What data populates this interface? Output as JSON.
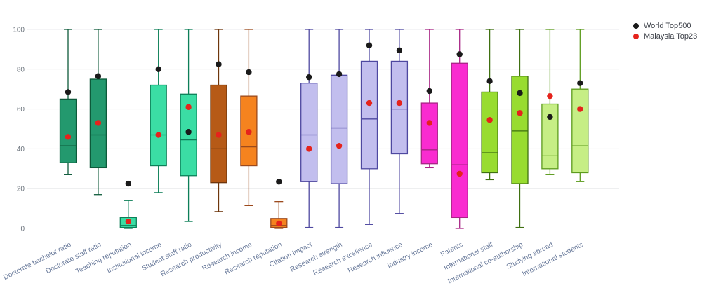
{
  "chart_data": {
    "type": "box",
    "title": "",
    "xlabel": "",
    "ylabel": "",
    "ylim": [
      0,
      100
    ],
    "yticks": [
      0,
      20,
      40,
      60,
      80,
      100
    ],
    "grid": true,
    "legend": {
      "position": "top-right",
      "items": [
        {
          "label": "World Top500",
          "color": "#1a1a1a"
        },
        {
          "label": "Malaysia Top23",
          "color": "#e5231c"
        }
      ]
    },
    "categories": [
      "Doctorate bachelor ratio",
      "Doctorate staff ratio",
      "Teaching reputation",
      "Institutional income",
      "Student staff ratio",
      "Research productivity",
      "Research income",
      "Research reputation",
      "Citation Impact",
      "Research strength",
      "Research excellence",
      "Research influence",
      "Industry income",
      "Patents",
      "International staff",
      "International co-authorship",
      "Studying abroad",
      "International students"
    ],
    "boxes": [
      {
        "label": "Doctorate bachelor ratio",
        "low": 27,
        "q1": 33,
        "median": 41.5,
        "q3": 65,
        "high": 100,
        "world": 68.5,
        "malaysia": 46,
        "fill": "#23996e",
        "stroke": "#0d5a3a"
      },
      {
        "label": "Doctorate staff ratio",
        "low": 17,
        "q1": 30.5,
        "median": 47,
        "q3": 75,
        "high": 100,
        "world": 76.5,
        "malaysia": 53,
        "fill": "#23996e",
        "stroke": "#0d5a3a"
      },
      {
        "label": "Teaching reputation",
        "low": 0,
        "q1": 0.5,
        "median": 1.5,
        "q3": 5.5,
        "high": 14,
        "world": 22.5,
        "malaysia": 3.5,
        "fill": "#3bdda4",
        "stroke": "#0d7f58"
      },
      {
        "label": "Institutional income",
        "low": 18,
        "q1": 31.5,
        "median": 47,
        "q3": 72,
        "high": 100,
        "world": 80,
        "malaysia": 47,
        "fill": "#3bdda4",
        "stroke": "#0d7f58"
      },
      {
        "label": "Student staff ratio",
        "low": 3.5,
        "q1": 26.5,
        "median": 44.5,
        "q3": 67.5,
        "high": 100,
        "world": 48.5,
        "malaysia": 61,
        "fill": "#3bdda4",
        "stroke": "#0d7f58"
      },
      {
        "label": "Research productivity",
        "low": 8.5,
        "q1": 23,
        "median": 40,
        "q3": 72,
        "high": 100,
        "world": 82.5,
        "malaysia": 47,
        "fill": "#b65a17",
        "stroke": "#6e360c"
      },
      {
        "label": "Research income",
        "low": 11.5,
        "q1": 31.5,
        "median": 41,
        "q3": 66.5,
        "high": 100,
        "world": 78.5,
        "malaysia": 48.5,
        "fill": "#f5831f",
        "stroke": "#9c4a1d"
      },
      {
        "label": "Research reputation",
        "low": 0,
        "q1": 0.5,
        "median": 1.5,
        "q3": 5,
        "high": 13.5,
        "world": 23.5,
        "malaysia": 2.5,
        "fill": "#f5831f",
        "stroke": "#9c4a1d"
      },
      {
        "label": "Citation Impact",
        "low": 0.5,
        "q1": 23.5,
        "median": 47,
        "q3": 73,
        "high": 100,
        "world": 76,
        "malaysia": 40,
        "fill": "#c2beee",
        "stroke": "#4e48a0"
      },
      {
        "label": "Research strength",
        "low": 0.5,
        "q1": 22.5,
        "median": 50.5,
        "q3": 77,
        "high": 100,
        "world": 77.5,
        "malaysia": 41.5,
        "fill": "#c2beee",
        "stroke": "#4e48a0"
      },
      {
        "label": "Research excellence",
        "low": 2,
        "q1": 30,
        "median": 55,
        "q3": 84,
        "high": 100,
        "world": 92,
        "malaysia": 63,
        "fill": "#c2beee",
        "stroke": "#4e48a0"
      },
      {
        "label": "Research influence",
        "low": 7.5,
        "q1": 37.5,
        "median": 60,
        "q3": 84,
        "high": 100,
        "world": 89.5,
        "malaysia": 63,
        "fill": "#c2beee",
        "stroke": "#4e48a0"
      },
      {
        "label": "Industry income",
        "low": 30.5,
        "q1": 32.5,
        "median": 39.5,
        "q3": 63,
        "high": 100,
        "world": 69,
        "malaysia": 53,
        "fill": "#f92cd0",
        "stroke": "#a82585"
      },
      {
        "label": "Patents",
        "low": 0,
        "q1": 5.5,
        "median": 32,
        "q3": 83,
        "high": 100,
        "world": 87.5,
        "malaysia": 27.5,
        "fill": "#f92cd0",
        "stroke": "#a82585"
      },
      {
        "label": "International staff",
        "low": 24.5,
        "q1": 28,
        "median": 38,
        "q3": 68.5,
        "high": 100,
        "world": 74,
        "malaysia": 54.5,
        "fill": "#98dc30",
        "stroke": "#3f7011"
      },
      {
        "label": "International co-authorship",
        "low": 0.5,
        "q1": 22.5,
        "median": 49,
        "q3": 76.5,
        "high": 100,
        "world": 68,
        "malaysia": 58,
        "fill": "#98dc30",
        "stroke": "#3f7011"
      },
      {
        "label": "Studying abroad",
        "low": 27,
        "q1": 30,
        "median": 36.5,
        "q3": 62.5,
        "high": 100,
        "world": 56,
        "malaysia": 66.5,
        "fill": "#c6ee85",
        "stroke": "#5c9b1d"
      },
      {
        "label": "International students",
        "low": 23.5,
        "q1": 28,
        "median": 41.5,
        "q3": 70,
        "high": 100,
        "world": 73,
        "malaysia": 60,
        "fill": "#c6ee85",
        "stroke": "#5c9b1d"
      }
    ],
    "axis_colors": {
      "ytick_color": "#6b737c",
      "xtick_color": "#68799a",
      "grid_color": "#e9eaec"
    }
  }
}
